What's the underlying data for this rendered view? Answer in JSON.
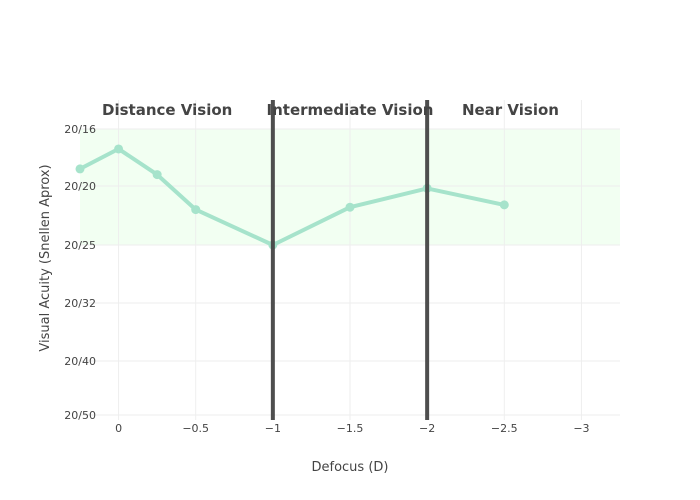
{
  "chart_data": {
    "type": "line",
    "xlabel": "Defocus (D)",
    "ylabel": "Visual Acuity (Snellen Aprox)",
    "xlim": [
      0.25,
      -3.25
    ],
    "x_ticks": [
      {
        "value": 0,
        "label": "0"
      },
      {
        "value": -0.5,
        "label": "−0.5"
      },
      {
        "value": -1,
        "label": "−1"
      },
      {
        "value": -1.5,
        "label": "−1.5"
      },
      {
        "value": -2,
        "label": "−2"
      },
      {
        "value": -2.5,
        "label": "−2.5"
      },
      {
        "value": -3,
        "label": "−3"
      }
    ],
    "y_ticks": [
      {
        "value": 0.8,
        "label": "20/16"
      },
      {
        "value": 1.0,
        "label": "20/20"
      },
      {
        "value": 1.25,
        "label": "20/25"
      },
      {
        "value": 1.6,
        "label": "20/32"
      },
      {
        "value": 2.0,
        "label": "20/40"
      },
      {
        "value": 2.5,
        "label": "20/50"
      }
    ],
    "series": [
      {
        "x": [
          0.25,
          0,
          -0.25,
          -0.5,
          -1,
          -1.5,
          -2,
          -2.5
        ],
        "y": [
          0.94,
          0.87,
          0.96,
          1.1,
          1.25,
          1.09,
          1.01,
          1.08
        ],
        "color": "#a6e3cb"
      }
    ],
    "shaded_band": {
      "y_range": [
        "20/16",
        "20/25"
      ],
      "color": "#f2fff2"
    },
    "vertical_lines": [
      {
        "x": -1,
        "color": "#444444"
      },
      {
        "x": -2,
        "color": "#444444"
      }
    ],
    "regions": [
      {
        "label": "Distance Vision",
        "x_center": -0.315
      },
      {
        "label": "Intermediate Vision",
        "x_center": -1.5
      },
      {
        "label": "Near Vision",
        "x_center": -2.54
      }
    ],
    "grid": true
  }
}
